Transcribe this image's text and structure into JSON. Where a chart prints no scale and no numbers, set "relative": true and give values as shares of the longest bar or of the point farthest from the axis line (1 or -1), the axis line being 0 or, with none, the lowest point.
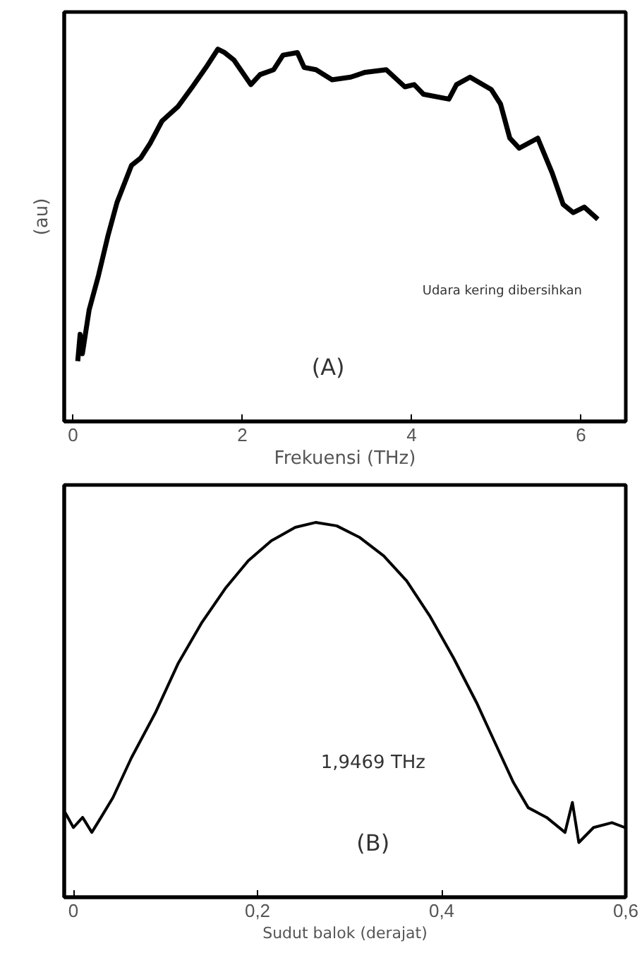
{
  "chart_data": [
    {
      "type": "line",
      "relative": true,
      "xlabel": "Frekuensi (THz)",
      "ylabel": "(au)",
      "xlim": [
        -0.105,
        6.53
      ],
      "xticks": [
        0,
        2,
        4,
        6
      ],
      "tick_labels": "x",
      "annotations": [
        "Udara kering dibersihkan",
        "(A)"
      ],
      "series": [
        {
          "color": "#000000",
          "x": [
            0.055,
            0.083,
            0.11,
            0.19,
            0.3,
            0.41,
            0.52,
            0.69,
            0.8,
            0.91,
            1.05,
            1.24,
            1.41,
            1.57,
            1.71,
            1.79,
            1.9,
            2.1,
            2.21,
            2.37,
            2.48,
            2.65,
            2.73,
            2.87,
            3.06,
            3.28,
            3.45,
            3.7,
            3.92,
            4.03,
            4.14,
            4.44,
            4.53,
            4.69,
            4.94,
            5.05,
            5.16,
            5.27,
            5.49,
            5.66,
            5.79,
            5.91,
            6.04,
            6.2
          ],
          "values": [
            0.162,
            0.234,
            0.182,
            0.3,
            0.392,
            0.497,
            0.589,
            0.688,
            0.708,
            0.747,
            0.807,
            0.846,
            0.899,
            0.951,
            1.0,
            0.991,
            0.971,
            0.905,
            0.932,
            0.945,
            0.984,
            0.991,
            0.951,
            0.945,
            0.918,
            0.925,
            0.938,
            0.945,
            0.899,
            0.905,
            0.879,
            0.866,
            0.905,
            0.925,
            0.892,
            0.853,
            0.761,
            0.734,
            0.761,
            0.668,
            0.583,
            0.561,
            0.576,
            0.543
          ]
        }
      ]
    },
    {
      "type": "line",
      "relative": true,
      "xlabel": "Sudut balok (derajat)",
      "xlim": [
        -0.01,
        0.6
      ],
      "xticks": [
        0,
        {
          "value": 0.2,
          "label": "0,2"
        },
        {
          "value": 0.4,
          "label": "0,4"
        },
        {
          "value": 0.6,
          "label": "0,6"
        }
      ],
      "tick_labels": "x",
      "annotations": [
        "1,9469 THz",
        "(B)"
      ],
      "series": [
        {
          "color": "#000000",
          "x": [
            -0.009,
            0.0,
            0.01,
            0.02,
            0.03,
            0.043,
            0.063,
            0.089,
            0.114,
            0.139,
            0.165,
            0.19,
            0.215,
            0.241,
            0.263,
            0.286,
            0.311,
            0.337,
            0.362,
            0.387,
            0.413,
            0.438,
            0.458,
            0.478,
            0.494,
            0.514,
            0.534,
            0.542,
            0.549,
            0.565,
            0.585,
            0.599
          ],
          "values": [
            0.226,
            0.186,
            0.213,
            0.173,
            0.213,
            0.266,
            0.372,
            0.492,
            0.625,
            0.731,
            0.824,
            0.898,
            0.951,
            0.987,
            1.0,
            0.991,
            0.96,
            0.911,
            0.844,
            0.751,
            0.638,
            0.519,
            0.412,
            0.306,
            0.239,
            0.213,
            0.173,
            0.253,
            0.146,
            0.186,
            0.199,
            0.186
          ]
        }
      ]
    }
  ]
}
